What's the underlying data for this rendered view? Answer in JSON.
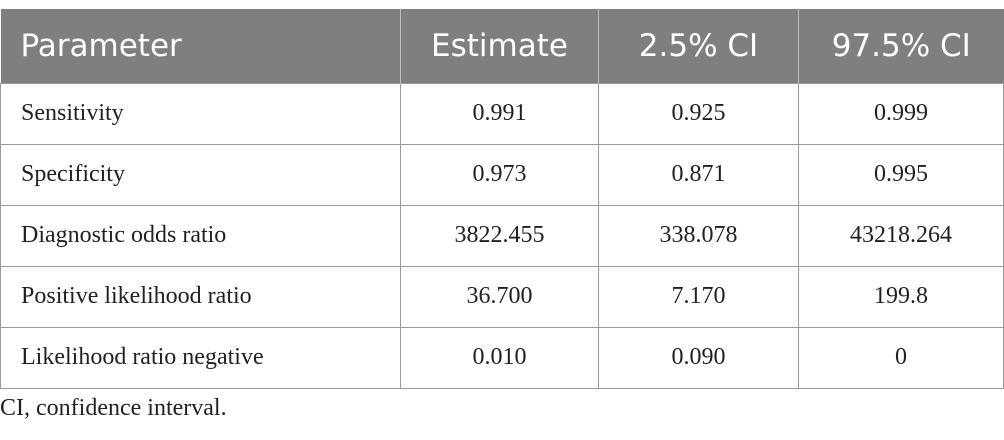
{
  "table": {
    "headers": [
      "Parameter",
      "Estimate",
      "2.5% CI",
      "97.5% CI"
    ],
    "rows": [
      [
        "Sensitivity",
        "0.991",
        "0.925",
        "0.999"
      ],
      [
        "Specificity",
        "0.973",
        "0.871",
        "0.995"
      ],
      [
        "Diagnostic odds ratio",
        "3822.455",
        "338.078",
        "43218.264"
      ],
      [
        "Positive likelihood ratio",
        "36.700",
        "7.170",
        "199.8"
      ],
      [
        "Likelihood ratio negative",
        "0.010",
        "0.090",
        "0"
      ]
    ]
  },
  "footnote": "CI, confidence interval.",
  "colors": {
    "header_background": "#7f7f7f",
    "header_text": "#ffffff",
    "body_text": "#231f20",
    "grid_lines": "#9a9a9a"
  }
}
